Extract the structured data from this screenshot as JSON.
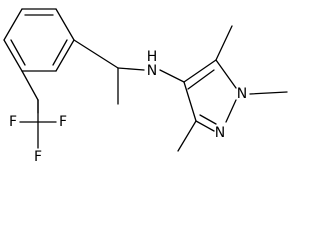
{
  "amine": {
    "hydrogen": "H",
    "nitrogen": "N"
  },
  "pyrazole": {
    "n1": "N",
    "n2": "N"
  },
  "trifluoromethyl": {
    "f1": "F",
    "f2": "F",
    "f3": "F"
  }
}
